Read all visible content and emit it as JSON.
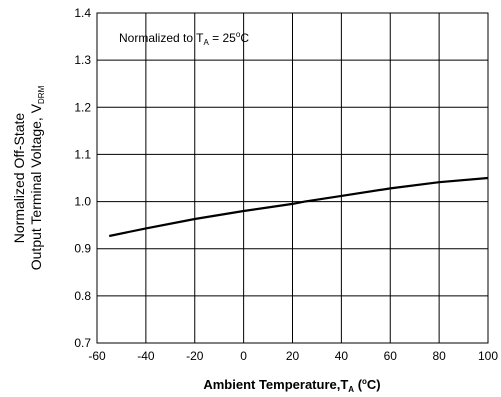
{
  "chart_data": {
    "type": "line",
    "title": "",
    "xlabel": "Ambient Temperature,T",
    "xlabel_sub": "A",
    "xlabel_unit_open": " (",
    "xlabel_unit_deg": "o",
    "xlabel_unit_close": "C)",
    "ylabel_line1": "Normalized Off-State",
    "ylabel_line2": "Output Terminal Voltage, V",
    "ylabel_sub": "DRM",
    "annotation": {
      "prefix": "Normalized to T",
      "sub": "A",
      "mid": " = 25",
      "deg": "o",
      "suffix": "C"
    },
    "xlim": [
      -60,
      100
    ],
    "ylim": [
      0.7,
      1.4
    ],
    "xticks": [
      -60,
      -40,
      -20,
      0,
      20,
      40,
      60,
      80,
      100
    ],
    "yticks": [
      "0.7",
      "0.8",
      "0.9",
      "1.0",
      "1.1",
      "1.2",
      "1.3",
      "1.4"
    ],
    "grid": true,
    "series": [
      {
        "x": [
          -55,
          -40,
          -20,
          0,
          20,
          25,
          40,
          60,
          80,
          100
        ],
        "y": [
          0.927,
          0.943,
          0.963,
          0.98,
          0.995,
          1.0,
          1.012,
          1.028,
          1.041,
          1.05
        ]
      }
    ]
  }
}
